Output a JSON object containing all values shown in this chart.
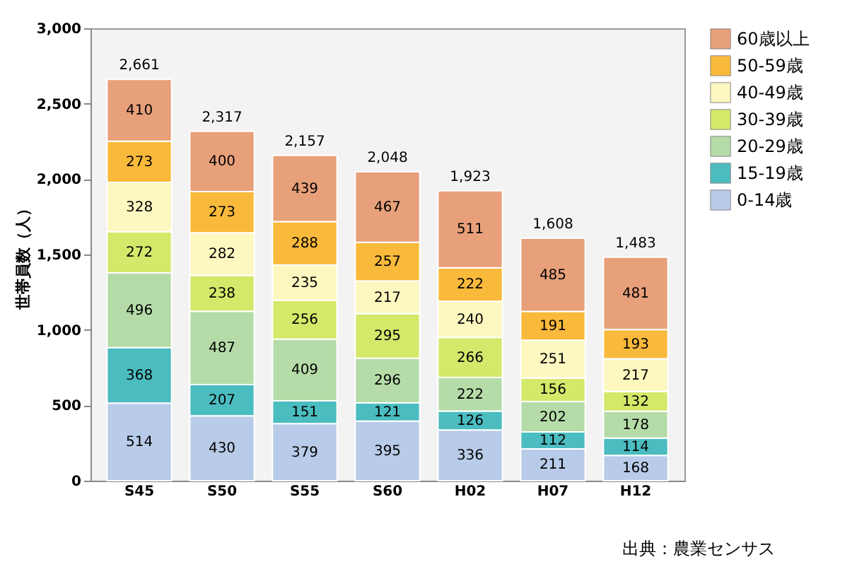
{
  "chart_data": {
    "type": "bar",
    "stacked": true,
    "ylabel": "世帯員数（人）",
    "categories": [
      "S45",
      "S50",
      "S55",
      "S60",
      "H02",
      "H07",
      "H12"
    ],
    "series": [
      {
        "name": "0-14歳",
        "color": "#b8cbe8",
        "values": [
          514,
          430,
          379,
          395,
          336,
          211,
          168
        ]
      },
      {
        "name": "15-19歳",
        "color": "#4bbcc0",
        "values": [
          368,
          207,
          151,
          121,
          126,
          112,
          114
        ]
      },
      {
        "name": "20-29歳",
        "color": "#b5dca8",
        "values": [
          496,
          487,
          409,
          296,
          222,
          202,
          178
        ]
      },
      {
        "name": "30-39歳",
        "color": "#d4e86a",
        "values": [
          272,
          238,
          256,
          295,
          266,
          156,
          132
        ]
      },
      {
        "name": "40-49歳",
        "color": "#fdf7c0",
        "values": [
          328,
          282,
          235,
          217,
          240,
          251,
          217
        ]
      },
      {
        "name": "50-59歳",
        "color": "#f9b93a",
        "values": [
          273,
          273,
          288,
          257,
          222,
          191,
          193
        ]
      },
      {
        "name": "60歳以上",
        "color": "#e8a07a",
        "values": [
          410,
          400,
          439,
          467,
          511,
          485,
          481
        ]
      }
    ],
    "totals": [
      "2,661",
      "2,317",
      "2,157",
      "2,048",
      "1,923",
      "1,608",
      "1,483"
    ],
    "data_labels": true,
    "ylim": [
      0,
      3000
    ],
    "yticks": [
      {
        "value": 0,
        "label": "0"
      },
      {
        "value": 500,
        "label": "500"
      },
      {
        "value": 1000,
        "label": "1,000"
      },
      {
        "value": 1500,
        "label": "1,500"
      },
      {
        "value": 2000,
        "label": "2,000"
      },
      {
        "value": 2500,
        "label": "2,500"
      },
      {
        "value": 3000,
        "label": "3,000"
      }
    ],
    "grid": false,
    "legend": "right",
    "annotations": [
      "出典：農業センサス"
    ]
  }
}
